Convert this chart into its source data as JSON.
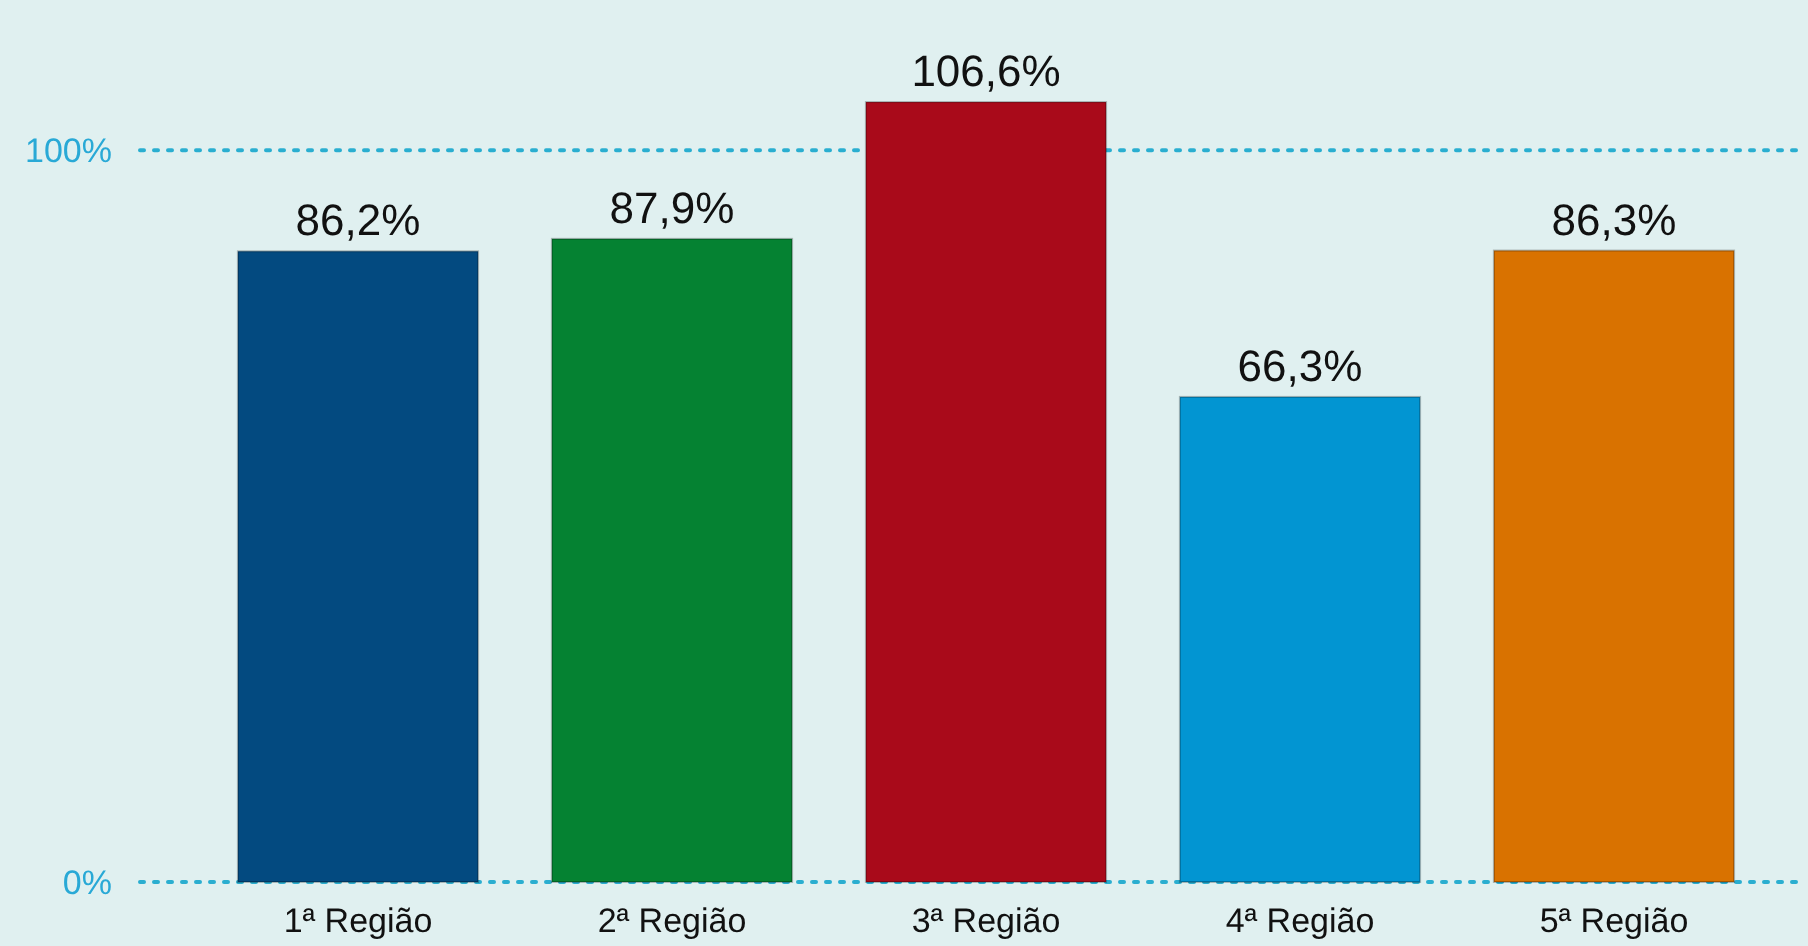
{
  "chart_data": {
    "type": "bar",
    "categories": [
      "1ª Região",
      "2ª Região",
      "3ª Região",
      "4ª Região",
      "5ª Região"
    ],
    "values": [
      86.2,
      87.9,
      106.6,
      66.3,
      86.3
    ],
    "colors": [
      "#034a80",
      "#058232",
      "#a90a1a",
      "#0295d2",
      "#d97200"
    ],
    "value_labels": [
      "86,2%",
      "87,9%",
      "106,6%",
      "66,3%",
      "86,3%"
    ],
    "ylim": [
      0,
      120
    ],
    "yticks": [
      {
        "value": 0,
        "label": "0%"
      },
      {
        "value": 100,
        "label": "100%"
      }
    ],
    "ref_lines": [
      {
        "axis": "y",
        "value": 0,
        "color": "#2aaed0",
        "line_style": "dotted"
      },
      {
        "axis": "y",
        "value": 100,
        "color": "#2aaed0",
        "line_style": "dotted"
      }
    ]
  }
}
